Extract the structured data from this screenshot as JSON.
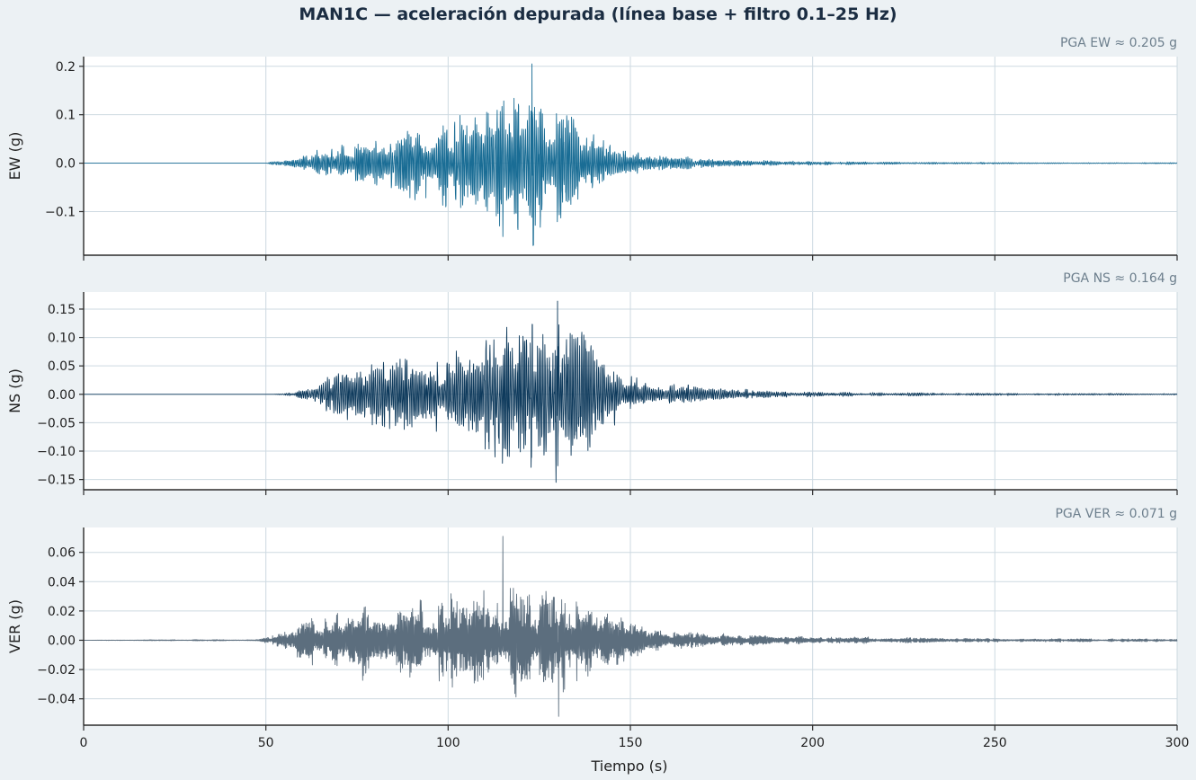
{
  "chart_data": {
    "type": "line",
    "title": "MAN1C — aceleración depurada (línea base + filtro 0.1–25 Hz)",
    "xlabel": "Tiempo (s)",
    "xlim": [
      0,
      300
    ],
    "xticks": [
      0,
      50,
      100,
      150,
      200,
      250,
      300
    ],
    "xtick_labels": [
      "0",
      "50",
      "100",
      "150",
      "200",
      "250",
      "300"
    ],
    "grid": true,
    "shared_x": true,
    "panels": [
      {
        "id": "ew",
        "ylabel": "EW (g)",
        "annotation": "PGA EW ≈ 0.205 g",
        "pga": 0.205,
        "color": "#1a6d95",
        "ylim": [
          -0.19,
          0.22
        ],
        "yticks": [
          0.2,
          0.1,
          0.0,
          -0.1
        ],
        "ytick_labels": [
          "0.2",
          "0.1",
          "0.0",
          "−0.1"
        ],
        "peak_time": 123,
        "peak_value": 0.205,
        "min_time": 123.3,
        "min_value": -0.17,
        "envelope_t": [
          0,
          50,
          52,
          60,
          68,
          80,
          90,
          100,
          110,
          118,
          123,
          128,
          135,
          142,
          150,
          160,
          175,
          190,
          210,
          240,
          270,
          300
        ],
        "envelope_a": [
          0,
          0,
          0.003,
          0.012,
          0.028,
          0.04,
          0.058,
          0.08,
          0.105,
          0.125,
          0.14,
          0.112,
          0.075,
          0.045,
          0.022,
          0.012,
          0.007,
          0.004,
          0.0025,
          0.0015,
          0.001,
          0.0008
        ],
        "seed": 11,
        "carrier_f": 1.9,
        "pos_ratio": 1.0
      },
      {
        "id": "ns",
        "ylabel": "NS (g)",
        "annotation": "PGA NS ≈ 0.164 g",
        "pga": 0.164,
        "color": "#0e3a5c",
        "ylim": [
          -0.168,
          0.18
        ],
        "yticks": [
          0.15,
          0.1,
          0.05,
          0.0,
          -0.05,
          -0.1,
          -0.15
        ],
        "ytick_labels": [
          "0.15",
          "0.10",
          "0.05",
          "0.00",
          "−0.05",
          "−0.10",
          "−0.15"
        ],
        "peak_time": 130,
        "peak_value": 0.164,
        "min_time": 129.6,
        "min_value": -0.155,
        "envelope_t": [
          0,
          52,
          56,
          62,
          68,
          78,
          88,
          98,
          105,
          112,
          118,
          124,
          130,
          135,
          142,
          150,
          160,
          175,
          190,
          210,
          240,
          270,
          300
        ],
        "envelope_a": [
          0,
          0,
          0.002,
          0.01,
          0.028,
          0.045,
          0.058,
          0.064,
          0.085,
          0.1,
          0.115,
          0.13,
          0.13,
          0.1,
          0.06,
          0.03,
          0.016,
          0.009,
          0.005,
          0.003,
          0.002,
          0.0015,
          0.001
        ],
        "seed": 29,
        "carrier_f": 1.7,
        "pos_ratio": 1.0
      },
      {
        "id": "ver",
        "ylabel": "VER (g)",
        "annotation": "PGA VER ≈ 0.071 g",
        "pga": 0.071,
        "color": "#5c6e7e",
        "ylim": [
          -0.058,
          0.077
        ],
        "yticks": [
          0.06,
          0.04,
          0.02,
          0.0,
          -0.02,
          -0.04
        ],
        "ytick_labels": [
          "0.06",
          "0.04",
          "0.02",
          "0.00",
          "−0.02",
          "−0.04"
        ],
        "peak_time": 115,
        "peak_value": 0.071,
        "min_time": 130.3,
        "min_value": -0.052,
        "envelope_t": [
          0,
          15,
          48,
          52,
          58,
          66,
          75,
          85,
          95,
          105,
          115,
          125,
          132,
          140,
          150,
          160,
          172,
          185,
          200,
          230,
          260,
          300
        ],
        "envelope_a": [
          0,
          0.0003,
          0.0005,
          0.003,
          0.009,
          0.017,
          0.02,
          0.022,
          0.025,
          0.03,
          0.034,
          0.032,
          0.028,
          0.02,
          0.011,
          0.006,
          0.004,
          0.003,
          0.002,
          0.0014,
          0.001,
          0.0008
        ],
        "seed": 47,
        "carrier_f": 3.2,
        "pos_ratio": 1.0
      }
    ]
  }
}
